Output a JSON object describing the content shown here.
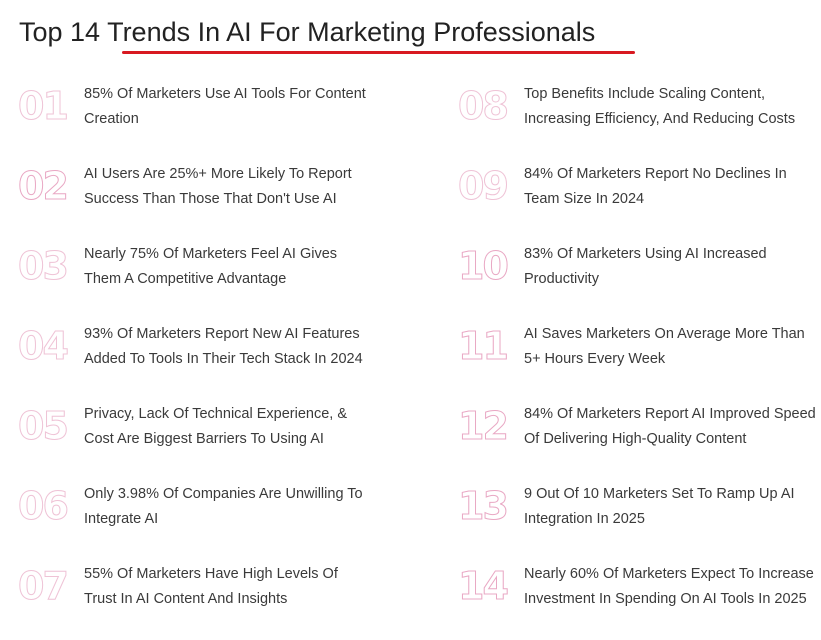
{
  "title": "Top 14 Trends In AI For Marketing Professionals",
  "accent_color": "#d81921",
  "number_outline_color": "#e9a8c4",
  "trends": [
    {
      "number": "01",
      "text": "85% Of Marketers Use AI Tools For Content Creation"
    },
    {
      "number": "02",
      "text": "AI Users Are 25%+ More Likely To Report Success Than Those That Don't Use AI"
    },
    {
      "number": "03",
      "text": "Nearly 75% Of Marketers Feel AI Gives Them A Competitive Advantage"
    },
    {
      "number": "04",
      "text": "93% Of Marketers Report New AI Features Added To Tools In Their Tech Stack In 2024"
    },
    {
      "number": "05",
      "text": "Privacy, Lack Of Technical Experience, & Cost Are Biggest Barriers To Using AI"
    },
    {
      "number": "06",
      "text": "Only 3.98% Of Companies Are Unwilling To Integrate AI"
    },
    {
      "number": "07",
      "text": "55% Of Marketers Have High Levels Of Trust In AI Content And Insights"
    },
    {
      "number": "08",
      "text": "Top Benefits Include Scaling Content, Increasing Efficiency, And Reducing Costs"
    },
    {
      "number": "09",
      "text": "84% Of Marketers Report No Declines In Team Size In 2024"
    },
    {
      "number": "10",
      "text": "83% Of Marketers Using AI Increased Productivity"
    },
    {
      "number": "11",
      "text": "AI Saves Marketers On Average More Than 5+ Hours Every Week"
    },
    {
      "number": "12",
      "text": "84% Of Marketers Report AI Improved Speed Of Delivering High-Quality Content"
    },
    {
      "number": "13",
      "text": "9 Out Of 10 Marketers Set To Ramp Up AI Integration In 2025"
    },
    {
      "number": "14",
      "text": "Nearly 60% Of Marketers Expect To Increase Investment In Spending On AI Tools In 2025"
    }
  ]
}
